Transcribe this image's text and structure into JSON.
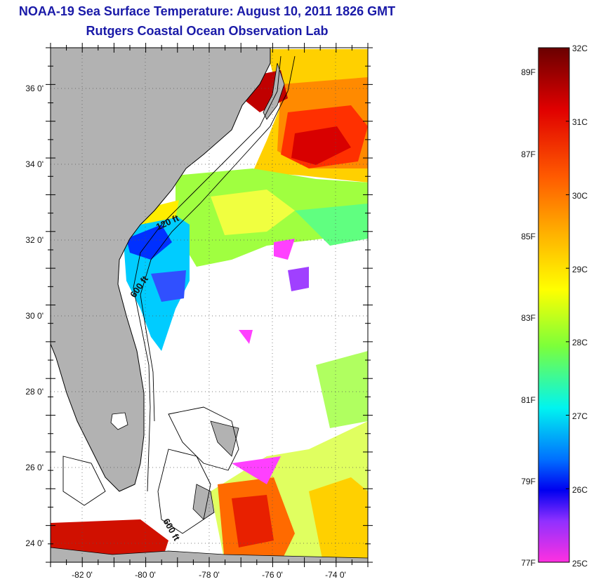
{
  "title": "NOAA-19 Sea Surface Temperature:  August 10, 2011 1826 GMT",
  "subtitle": "Rutgers Coastal Ocean Observation Lab",
  "map": {
    "lon_range": [
      -83,
      -73
    ],
    "lat_range": [
      23,
      37
    ],
    "x_ticks": [
      "-82 0'",
      "-80 0'",
      "-78 0'",
      "-76 0'",
      "-74 0'"
    ],
    "y_ticks": [
      "36 0'",
      "34 0'",
      "32 0'",
      "30 0'",
      "28 0'",
      "26 0'",
      "24 0'"
    ],
    "contour_labels": [
      "120 ft",
      "600 ft",
      "600 ft"
    ]
  },
  "colorbar": {
    "celsius": [
      "32C",
      "31C",
      "30C",
      "29C",
      "28C",
      "27C",
      "26C",
      "25C"
    ],
    "fahrenheit": [
      "89F",
      "87F",
      "85F",
      "83F",
      "81F",
      "79F",
      "77F"
    ],
    "colors": [
      "#7a0000",
      "#ff1a00",
      "#ff8000",
      "#ffff00",
      "#80ff40",
      "#00ffff",
      "#0060ff",
      "#0000ff",
      "#8a30ff",
      "#ff20ff"
    ]
  }
}
